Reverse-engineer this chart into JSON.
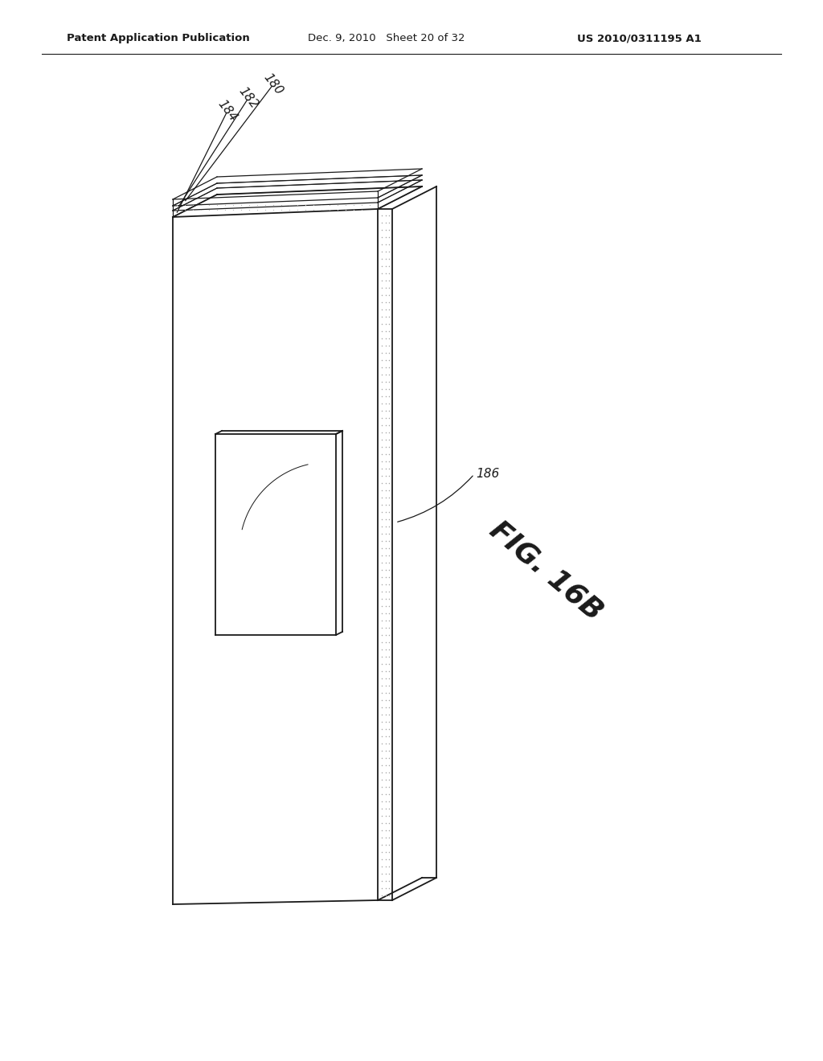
{
  "bg_color": "#ffffff",
  "line_color": "#1a1a1a",
  "line_color_light": "#555555",
  "header_left": "Patent Application Publication",
  "header_mid": "Dec. 9, 2010   Sheet 20 of 32",
  "header_right": "US 2010/0311195 A1",
  "fig_label": "FIG. 16B",
  "label_180": "180",
  "label_182": "182",
  "label_184": "184",
  "label_186": "186",
  "lw_main": 1.3,
  "lw_thin": 0.9
}
